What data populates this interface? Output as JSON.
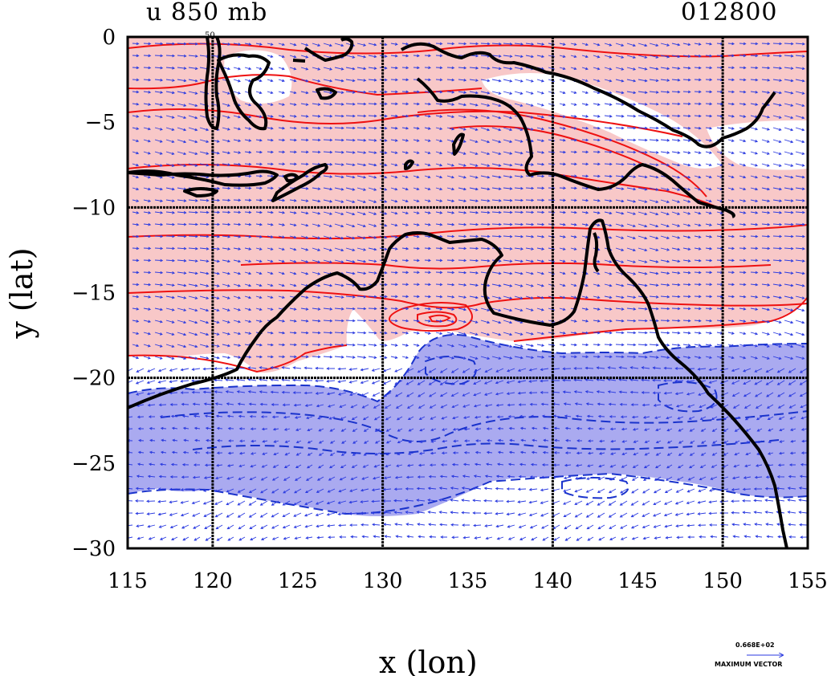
{
  "header": {
    "field_title": "u 850 mb",
    "time_stamp": "012800"
  },
  "map": {
    "x_axis": {
      "label": "x (lon)",
      "range": [
        115,
        155
      ],
      "ticks": [
        115,
        120,
        125,
        130,
        135,
        140,
        145,
        150,
        155
      ],
      "tick_labels": [
        "115",
        "120",
        "125",
        "130",
        "135",
        "140",
        "145",
        "150",
        "155"
      ]
    },
    "y_axis": {
      "label": "y (lat)",
      "range": [
        -30,
        0
      ],
      "ticks": [
        0,
        -5,
        -10,
        -15,
        -20,
        -25,
        -30
      ],
      "tick_labels": [
        "0",
        "−5",
        "−10",
        "−15",
        "−20",
        "−25",
        "−30"
      ]
    },
    "gridlines_lon": [
      120,
      130,
      140,
      150
    ],
    "gridlines_lat": [
      -10,
      -20
    ],
    "contour_label": "50",
    "colors": {
      "positive_fill": "#f8c8c8",
      "positive_contour": "#ee1111",
      "negative_fill": "#aaaaf0",
      "negative_contour": "#1a33cc",
      "vector": "#2a3ae0",
      "coastline": "#000000",
      "grid": "#000000"
    },
    "reference_vector": {
      "magnitude": "0.668E+02",
      "caption": "MAXIMUM VECTOR"
    }
  }
}
